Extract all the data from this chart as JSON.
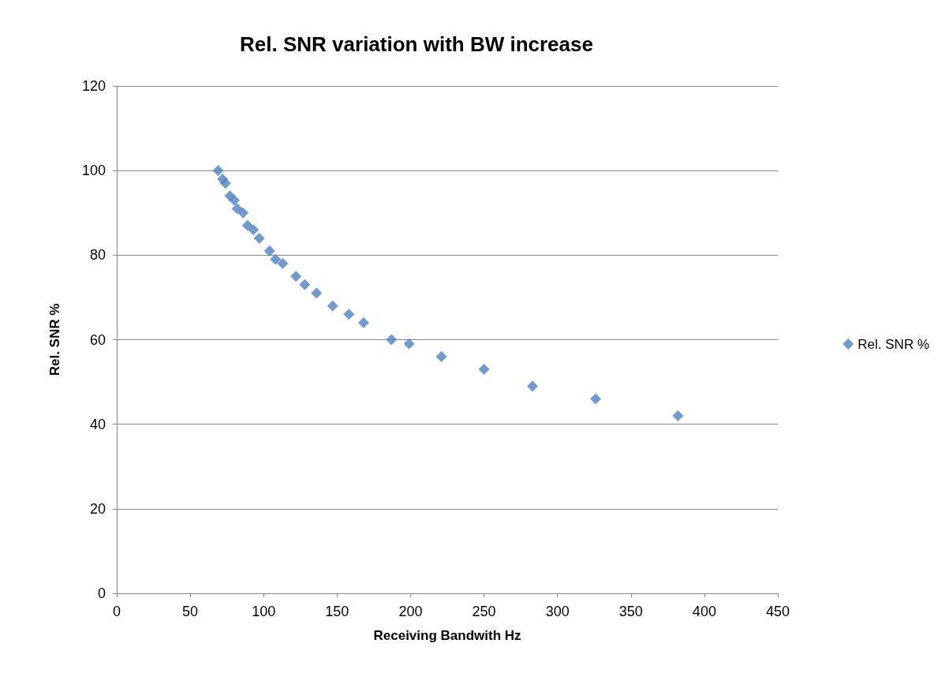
{
  "chart_data": {
    "type": "scatter",
    "title": "Rel. SNR variation with BW increase",
    "xlabel": "Receiving Bandwith Hz",
    "ylabel": "Rel. SNR %",
    "x": [
      69,
      72,
      74,
      77,
      80,
      82,
      86,
      89,
      93,
      97,
      104,
      108,
      113,
      122,
      128,
      136,
      147,
      158,
      168,
      187,
      199,
      221,
      250,
      283,
      326,
      382
    ],
    "series": [
      {
        "name": "Rel. SNR %",
        "color": "#4f81bd",
        "values": [
          100,
          98,
          97,
          94,
          93,
          91,
          90,
          87,
          86,
          84,
          81,
          79,
          78,
          75,
          73,
          71,
          68,
          66,
          64,
          60,
          59,
          56,
          53,
          49,
          46,
          42
        ]
      }
    ],
    "xlim": [
      0,
      450
    ],
    "xticks": [
      0,
      50,
      100,
      150,
      200,
      250,
      300,
      350,
      400,
      450
    ],
    "ylim": [
      0,
      120
    ],
    "yticks": [
      0,
      20,
      40,
      60,
      80,
      100,
      120
    ],
    "grid": "y",
    "legend": "right",
    "marker": "diamond"
  }
}
